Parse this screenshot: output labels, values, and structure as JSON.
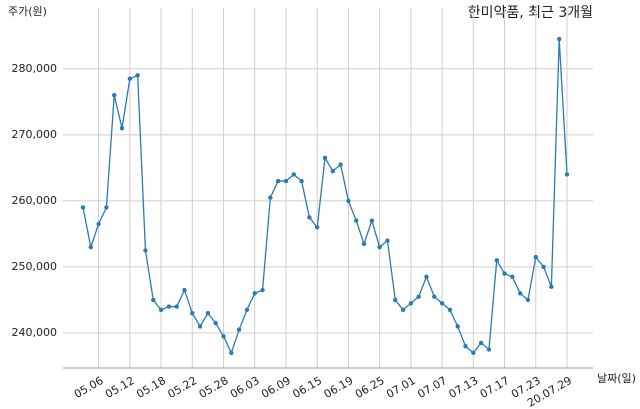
{
  "chart_data": {
    "type": "line",
    "title": "한미약품, 최근 3개월",
    "y_label": "주가(원)",
    "x_label": "날짜(일)",
    "categories": [
      null,
      null,
      "05.06",
      null,
      null,
      null,
      "05.12",
      null,
      null,
      null,
      "05.18",
      null,
      null,
      null,
      "05.22",
      null,
      null,
      null,
      "05.28",
      null,
      null,
      null,
      "06.03",
      null,
      null,
      null,
      "06.09",
      null,
      null,
      null,
      "06.15",
      null,
      null,
      null,
      "06.19",
      null,
      null,
      null,
      "06.25",
      null,
      null,
      null,
      "07.01",
      null,
      null,
      null,
      "07.07",
      null,
      null,
      null,
      "07.13",
      null,
      null,
      null,
      "07.17",
      null,
      null,
      null,
      "07.23",
      null,
      null,
      null,
      "20.07.29"
    ],
    "series": [
      {
        "name": "한미약품",
        "color": "#2b7bb3",
        "values": [
          259000,
          253000,
          256500,
          259000,
          276000,
          271000,
          278500,
          279000,
          252500,
          245000,
          243500,
          244000,
          244000,
          246500,
          243000,
          241000,
          243000,
          241500,
          239500,
          237000,
          240500,
          243500,
          246000,
          246500,
          260500,
          263000,
          263000,
          264000,
          263000,
          257500,
          256000,
          266500,
          264500,
          265500,
          260000,
          257000,
          253500,
          257000,
          253000,
          254000,
          245000,
          243500,
          244500,
          245500,
          248500,
          245500,
          244500,
          243500,
          241000,
          238000,
          237000,
          238500,
          237500,
          251000,
          249000,
          248500,
          246000,
          245000,
          251500,
          250000,
          247000,
          284500,
          264000
        ]
      }
    ],
    "ylim": [
      234700,
      289200
    ],
    "yticks": [
      {
        "value": 240000,
        "label": "240,000"
      },
      {
        "value": 250000,
        "label": "250,000"
      },
      {
        "value": 260000,
        "label": "260,000"
      },
      {
        "value": 270000,
        "label": "270,000"
      },
      {
        "value": 280000,
        "label": "280,000"
      }
    ],
    "grid": true
  }
}
